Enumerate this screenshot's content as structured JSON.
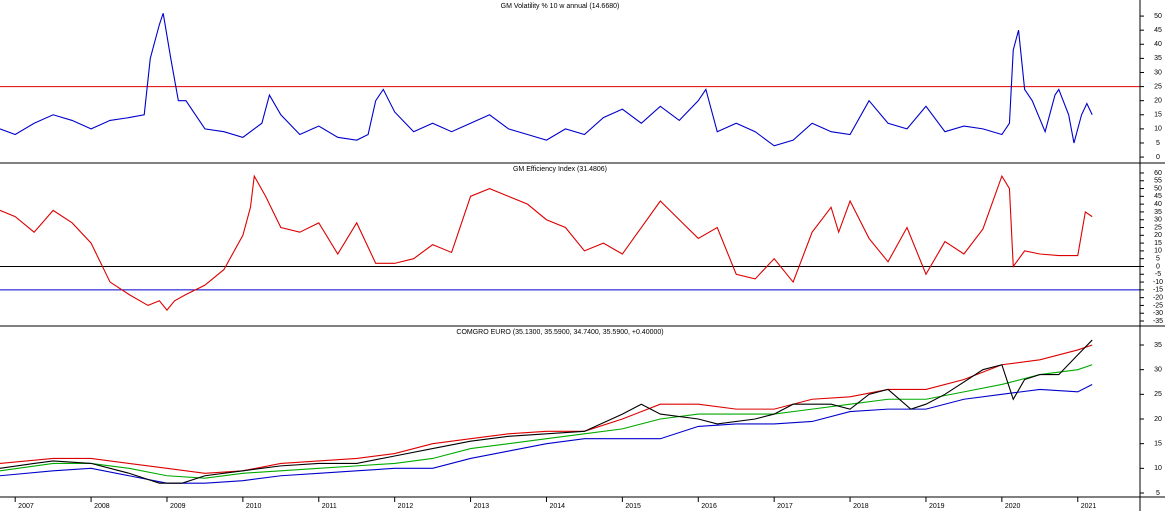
{
  "chart_data": [
    {
      "type": "line",
      "title": "GM Volatility % 10 w annual (14.6680)",
      "xlim": [
        2006.8,
        2021.82
      ],
      "ylim": [
        -2.1,
        55.7
      ],
      "yticks": [
        0,
        5,
        10,
        15,
        20,
        25,
        30,
        35,
        40,
        45,
        50
      ],
      "hlines": [
        {
          "value": 25,
          "color": "#e00000"
        }
      ],
      "series": [
        {
          "color": "#0000cc",
          "x": [
            2006.8,
            2007.0,
            2007.25,
            2007.5,
            2007.75,
            2008.0,
            2008.25,
            2008.5,
            2008.7,
            2008.78,
            2008.9,
            2008.95,
            2009.05,
            2009.15,
            2009.25,
            2009.5,
            2009.75,
            2010.0,
            2010.25,
            2010.35,
            2010.5,
            2010.75,
            2011.0,
            2011.25,
            2011.5,
            2011.65,
            2011.75,
            2011.85,
            2012.0,
            2012.25,
            2012.5,
            2012.75,
            2013.0,
            2013.25,
            2013.5,
            2013.75,
            2014.0,
            2014.25,
            2014.5,
            2014.75,
            2015.0,
            2015.25,
            2015.5,
            2015.75,
            2016.0,
            2016.1,
            2016.25,
            2016.5,
            2016.75,
            2017.0,
            2017.25,
            2017.5,
            2017.75,
            2018.0,
            2018.25,
            2018.5,
            2018.75,
            2019.0,
            2019.25,
            2019.5,
            2019.75,
            2020.0,
            2020.1,
            2020.15,
            2020.22,
            2020.3,
            2020.4,
            2020.57,
            2020.7,
            2020.75,
            2020.88,
            2020.95,
            2021.05,
            2021.12,
            2021.19
          ],
          "values": [
            10,
            8,
            12,
            15,
            13,
            10,
            13,
            14,
            15,
            35,
            47,
            51,
            35,
            20,
            20,
            10,
            9,
            7,
            12,
            22,
            15,
            8,
            11,
            7,
            6,
            8,
            20,
            24,
            16,
            9,
            12,
            9,
            12,
            15,
            10,
            8,
            6,
            10,
            8,
            14,
            17,
            12,
            18,
            13,
            20,
            24,
            9,
            12,
            9,
            4,
            6,
            12,
            9,
            8,
            20,
            12,
            10,
            18,
            9,
            11,
            10,
            8,
            12,
            38,
            45,
            24,
            20,
            9,
            22,
            24,
            15,
            5,
            15,
            19,
            15
          ]
        }
      ]
    },
    {
      "type": "line",
      "title": "GM Efficiency Index (31.4806)",
      "xlim": [
        2006.8,
        2021.82
      ],
      "ylim": [
        -38.2,
        66.4
      ],
      "yticks": [
        60,
        55,
        50,
        45,
        40,
        35,
        30,
        25,
        20,
        15,
        10,
        5,
        0,
        -5,
        -10,
        -15,
        -20,
        -25,
        -30,
        -35
      ],
      "hlines": [
        {
          "value": 0,
          "color": "#000000"
        },
        {
          "value": -15,
          "color": "#0000cc"
        }
      ],
      "series": [
        {
          "color": "#dd0000",
          "x": [
            2006.8,
            2007.0,
            2007.25,
            2007.5,
            2007.75,
            2008.0,
            2008.25,
            2008.5,
            2008.75,
            2008.9,
            2009.0,
            2009.1,
            2009.25,
            2009.5,
            2009.75,
            2010.0,
            2010.1,
            2010.15,
            2010.3,
            2010.5,
            2010.75,
            2011.0,
            2011.25,
            2011.5,
            2011.75,
            2012.0,
            2012.25,
            2012.5,
            2012.75,
            2013.0,
            2013.25,
            2013.5,
            2013.75,
            2014.0,
            2014.25,
            2014.5,
            2014.75,
            2015.0,
            2015.25,
            2015.5,
            2015.75,
            2016.0,
            2016.25,
            2016.5,
            2016.75,
            2017.0,
            2017.25,
            2017.5,
            2017.75,
            2017.85,
            2018.0,
            2018.25,
            2018.5,
            2018.75,
            2019.0,
            2019.25,
            2019.5,
            2019.75,
            2020.0,
            2020.1,
            2020.15,
            2020.3,
            2020.5,
            2020.75,
            2021.0,
            2021.1,
            2021.19
          ],
          "values": [
            36,
            32,
            22,
            36,
            28,
            15,
            -10,
            -18,
            -25,
            -22,
            -28,
            -22,
            -18,
            -12,
            -2,
            20,
            38,
            58,
            45,
            25,
            22,
            28,
            8,
            28,
            2,
            2,
            5,
            14,
            9,
            45,
            50,
            45,
            40,
            30,
            25,
            10,
            15,
            8,
            25,
            42,
            30,
            18,
            25,
            -5,
            -8,
            5,
            -10,
            22,
            38,
            22,
            42,
            18,
            3,
            25,
            -5,
            16,
            8,
            24,
            58,
            50,
            0,
            10,
            8,
            7,
            7,
            35,
            32
          ]
        }
      ]
    },
    {
      "type": "line",
      "title": "COMGRO EURO (35.1300, 35.5900, 34.7400, 35.5900, +0.40000)",
      "xlim": [
        2006.8,
        2021.82
      ],
      "ylim": [
        4.19,
        38.85
      ],
      "yticks": [
        5,
        10,
        15,
        20,
        25,
        30,
        35
      ],
      "xticks": [
        2007,
        2008,
        2009,
        2010,
        2011,
        2012,
        2013,
        2014,
        2015,
        2016,
        2017,
        2018,
        2019,
        2020,
        2021
      ],
      "series": [
        {
          "color": "#dd0000",
          "x": [
            2006.8,
            2007.5,
            2008.0,
            2008.5,
            2009.0,
            2009.5,
            2010.0,
            2010.5,
            2011.0,
            2011.5,
            2012.0,
            2012.5,
            2013.0,
            2013.5,
            2014.0,
            2014.5,
            2015.0,
            2015.5,
            2016.0,
            2016.5,
            2017.0,
            2017.5,
            2018.0,
            2018.5,
            2019.0,
            2019.5,
            2020.0,
            2020.5,
            2021.0,
            2021.19
          ],
          "values": [
            11,
            12,
            12,
            11,
            10,
            9,
            9.5,
            11,
            11.5,
            12,
            13,
            15,
            16,
            17,
            17.5,
            17.5,
            20,
            23,
            23,
            22,
            22,
            24,
            24.5,
            26,
            26,
            28,
            31,
            32,
            34,
            35
          ]
        },
        {
          "color": "#00aa00",
          "x": [
            2006.8,
            2007.5,
            2008.0,
            2008.5,
            2009.0,
            2009.5,
            2010.0,
            2010.5,
            2011.0,
            2011.5,
            2012.0,
            2012.5,
            2013.0,
            2013.5,
            2014.0,
            2014.5,
            2015.0,
            2015.5,
            2016.0,
            2016.5,
            2017.0,
            2017.5,
            2018.0,
            2018.5,
            2019.0,
            2019.5,
            2020.0,
            2020.5,
            2021.0,
            2021.19
          ],
          "values": [
            9.5,
            11,
            11,
            10,
            8.5,
            8,
            9,
            9.5,
            10,
            10.5,
            11,
            12,
            14,
            15,
            16,
            17,
            18,
            20,
            21,
            21,
            21,
            22,
            23,
            24,
            24,
            25.5,
            27,
            29,
            30,
            31
          ]
        },
        {
          "color": "#0000cc",
          "x": [
            2006.8,
            2007.5,
            2008.0,
            2008.5,
            2009.0,
            2009.5,
            2010.0,
            2010.5,
            2011.0,
            2011.5,
            2012.0,
            2012.5,
            2013.0,
            2013.5,
            2014.0,
            2014.5,
            2015.0,
            2015.5,
            2016.0,
            2016.5,
            2017.0,
            2017.5,
            2018.0,
            2018.5,
            2019.0,
            2019.5,
            2020.0,
            2020.5,
            2021.0,
            2021.19
          ],
          "values": [
            8.5,
            9.5,
            10,
            8.5,
            7,
            7,
            7.5,
            8.5,
            9,
            9.5,
            10,
            10,
            12,
            13.5,
            15,
            16,
            16,
            16,
            18.5,
            19,
            19,
            19.5,
            21.5,
            22,
            22,
            24,
            25,
            26,
            25.5,
            27
          ]
        },
        {
          "color": "#000000",
          "x": [
            2006.8,
            2007.25,
            2007.5,
            2008.0,
            2008.5,
            2008.9,
            2009.2,
            2009.5,
            2010.0,
            2010.5,
            2011.0,
            2011.5,
            2012.0,
            2012.5,
            2013.0,
            2013.5,
            2014.0,
            2014.5,
            2015.0,
            2015.25,
            2015.5,
            2016.0,
            2016.25,
            2016.75,
            2017.0,
            2017.25,
            2017.75,
            2018.0,
            2018.25,
            2018.5,
            2018.8,
            2019.0,
            2019.25,
            2019.75,
            2020.0,
            2020.15,
            2020.3,
            2020.5,
            2020.75,
            2021.0,
            2021.19
          ],
          "values": [
            10,
            11,
            11.5,
            11,
            9,
            7,
            7,
            8.5,
            9.5,
            10.5,
            11,
            11,
            12.5,
            14,
            15.5,
            16.5,
            17,
            17.5,
            21,
            23,
            21,
            20,
            19,
            20,
            21,
            23,
            23,
            22,
            25,
            26,
            22,
            23,
            25,
            30,
            31,
            24,
            28,
            29,
            29,
            33,
            36
          ]
        }
      ]
    }
  ]
}
